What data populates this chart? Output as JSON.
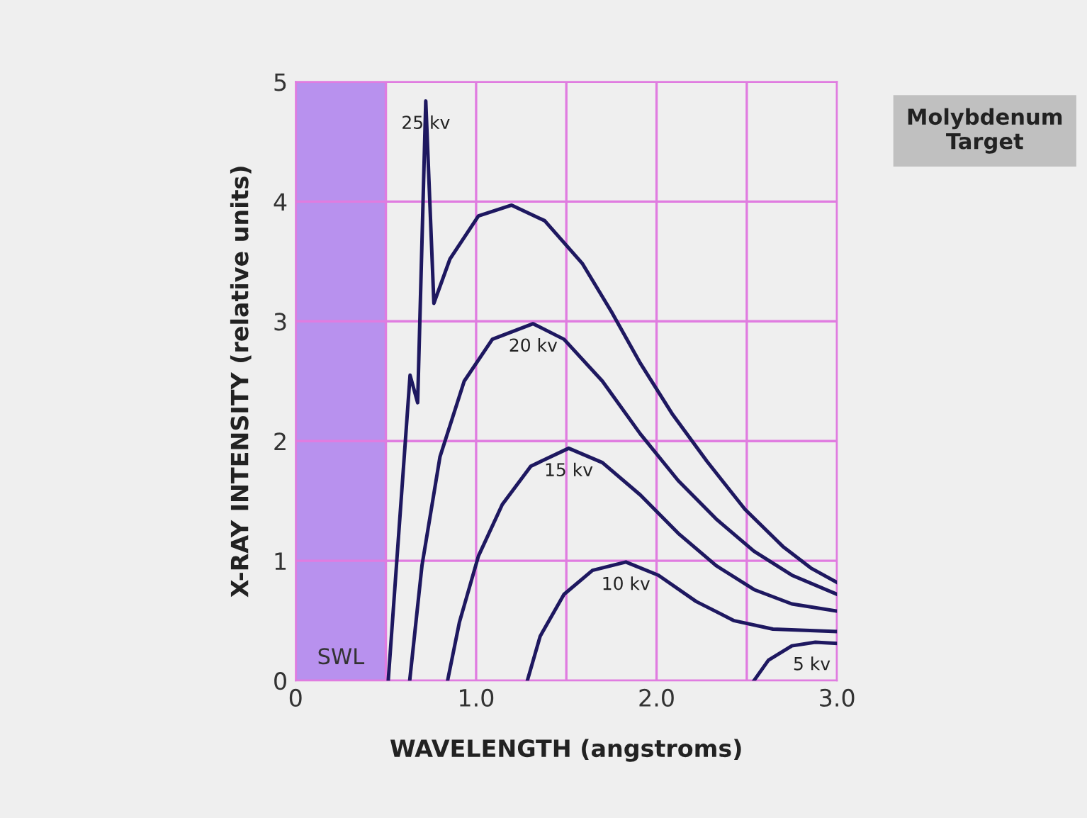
{
  "chart_data": {
    "type": "line",
    "xlabel": "WAVELENGTH (angstroms)",
    "ylabel": "X-RAY INTENSITY (relative units)",
    "xlim": [
      0,
      3.0
    ],
    "ylim": [
      0,
      5
    ],
    "xticks": [
      0,
      {
        "value": 0.5,
        "label": null
      },
      {
        "value": 1.0,
        "label": "1.0"
      },
      {
        "value": 1.5,
        "label": null
      },
      {
        "value": 2.0,
        "label": "2.0"
      },
      {
        "value": 2.5,
        "label": null
      },
      {
        "value": 3.0,
        "label": "3.0"
      }
    ],
    "yticks": [
      0,
      1,
      2,
      3,
      4,
      5
    ],
    "grid": true,
    "legend": false,
    "marker": "none",
    "line_style": "solid",
    "bands": [
      {
        "axis": "x",
        "from": 0,
        "to": 0.5,
        "label": "SWL",
        "color": "#b891ee"
      }
    ],
    "annotations": [
      "Molybdenum\nTarget"
    ],
    "series": [
      {
        "name": "25 kv",
        "color": "#1e1860",
        "x": [
          0.513,
          0.634,
          0.676,
          0.721,
          0.766,
          0.855,
          1.013,
          1.197,
          1.38,
          1.59,
          1.75,
          1.91,
          2.09,
          2.28,
          2.49,
          2.7,
          2.855,
          3.0
        ],
        "values": [
          0,
          2.55,
          2.32,
          4.84,
          3.15,
          3.52,
          3.88,
          3.97,
          3.84,
          3.48,
          3.08,
          2.65,
          2.22,
          1.83,
          1.43,
          1.12,
          0.94,
          0.82
        ]
      },
      {
        "name": "20 kv",
        "color": "#1e1860",
        "x": [
          0.632,
          0.7,
          0.8,
          0.934,
          1.09,
          1.316,
          1.487,
          1.7,
          1.91,
          2.12,
          2.33,
          2.54,
          2.75,
          3.0
        ],
        "values": [
          0,
          0.96,
          1.87,
          2.5,
          2.85,
          2.98,
          2.85,
          2.5,
          2.06,
          1.67,
          1.35,
          1.08,
          0.88,
          0.72
        ]
      },
      {
        "name": "15 kv",
        "color": "#1e1860",
        "x": [
          0.842,
          0.908,
          1.013,
          1.145,
          1.303,
          1.513,
          1.7,
          1.91,
          2.12,
          2.33,
          2.54,
          2.75,
          3.0
        ],
        "values": [
          0,
          0.49,
          1.04,
          1.47,
          1.79,
          1.94,
          1.82,
          1.55,
          1.23,
          0.96,
          0.76,
          0.64,
          0.58
        ]
      },
      {
        "name": "10 kv",
        "color": "#1e1860",
        "x": [
          1.284,
          1.355,
          1.487,
          1.645,
          1.83,
          2.01,
          2.22,
          2.43,
          2.645,
          3.0
        ],
        "values": [
          0,
          0.37,
          0.72,
          0.92,
          0.99,
          0.88,
          0.66,
          0.5,
          0.43,
          0.41
        ]
      },
      {
        "name": "5 kv",
        "color": "#1e1860",
        "x": [
          2.54,
          2.62,
          2.75,
          2.88,
          3.0
        ],
        "values": [
          0,
          0.17,
          0.29,
          0.32,
          0.31
        ]
      }
    ]
  }
}
